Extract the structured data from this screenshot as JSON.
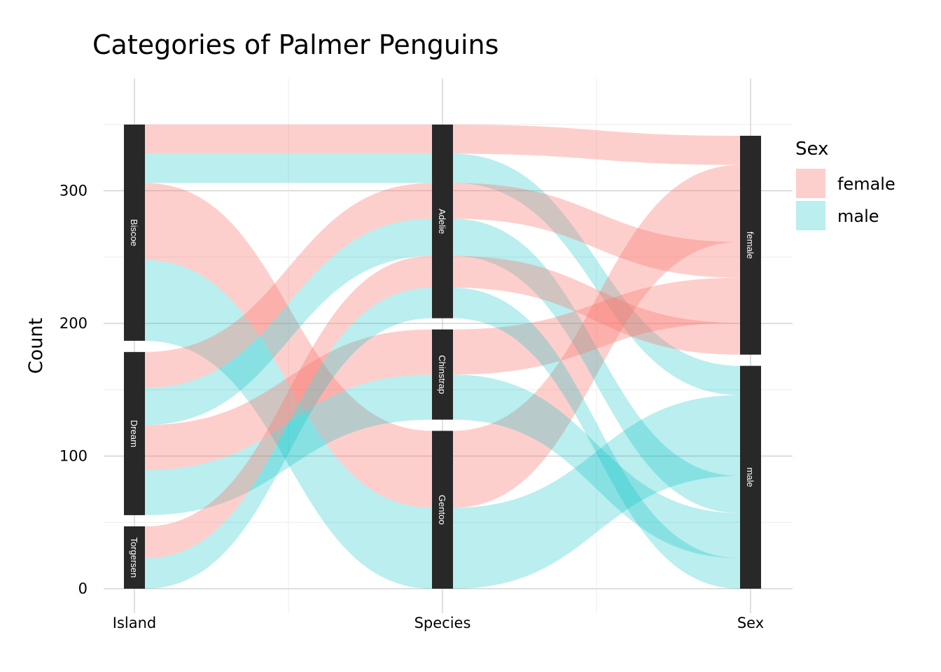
{
  "chart_data": {
    "type": "alluvial",
    "title": "Categories of Palmer Penguins",
    "ylabel": "Count",
    "xlabel": "",
    "axes": [
      "Island",
      "Species",
      "Sex"
    ],
    "ylim": [
      0,
      366
    ],
    "yticks": [
      0,
      100,
      200,
      300
    ],
    "grid": true,
    "legend": {
      "title": "Sex",
      "position": "right",
      "entries": [
        {
          "label": "female",
          "color": "#F8766D"
        },
        {
          "label": "male",
          "color": "#00BFC4"
        }
      ]
    },
    "strata": {
      "Island": [
        "Biscoe",
        "Dream",
        "Torgersen"
      ],
      "Species": [
        "Adelie",
        "Chinstrap",
        "Gentoo"
      ],
      "Sex": [
        "female",
        "male"
      ]
    },
    "flows": [
      {
        "island": "Biscoe",
        "species": "Adelie",
        "sex": "female",
        "count": 22
      },
      {
        "island": "Biscoe",
        "species": "Adelie",
        "sex": "male",
        "count": 22
      },
      {
        "island": "Biscoe",
        "species": "Gentoo",
        "sex": "female",
        "count": 58
      },
      {
        "island": "Biscoe",
        "species": "Gentoo",
        "sex": "male",
        "count": 61
      },
      {
        "island": "Dream",
        "species": "Adelie",
        "sex": "female",
        "count": 27
      },
      {
        "island": "Dream",
        "species": "Adelie",
        "sex": "male",
        "count": 28
      },
      {
        "island": "Dream",
        "species": "Chinstrap",
        "sex": "female",
        "count": 34
      },
      {
        "island": "Dream",
        "species": "Chinstrap",
        "sex": "male",
        "count": 34
      },
      {
        "island": "Torgersen",
        "species": "Adelie",
        "sex": "female",
        "count": 24
      },
      {
        "island": "Torgersen",
        "species": "Adelie",
        "sex": "male",
        "count": 23
      }
    ],
    "colors": {
      "female": "#F8766D",
      "male": "#00BFC4",
      "stratum": "#282828"
    }
  }
}
